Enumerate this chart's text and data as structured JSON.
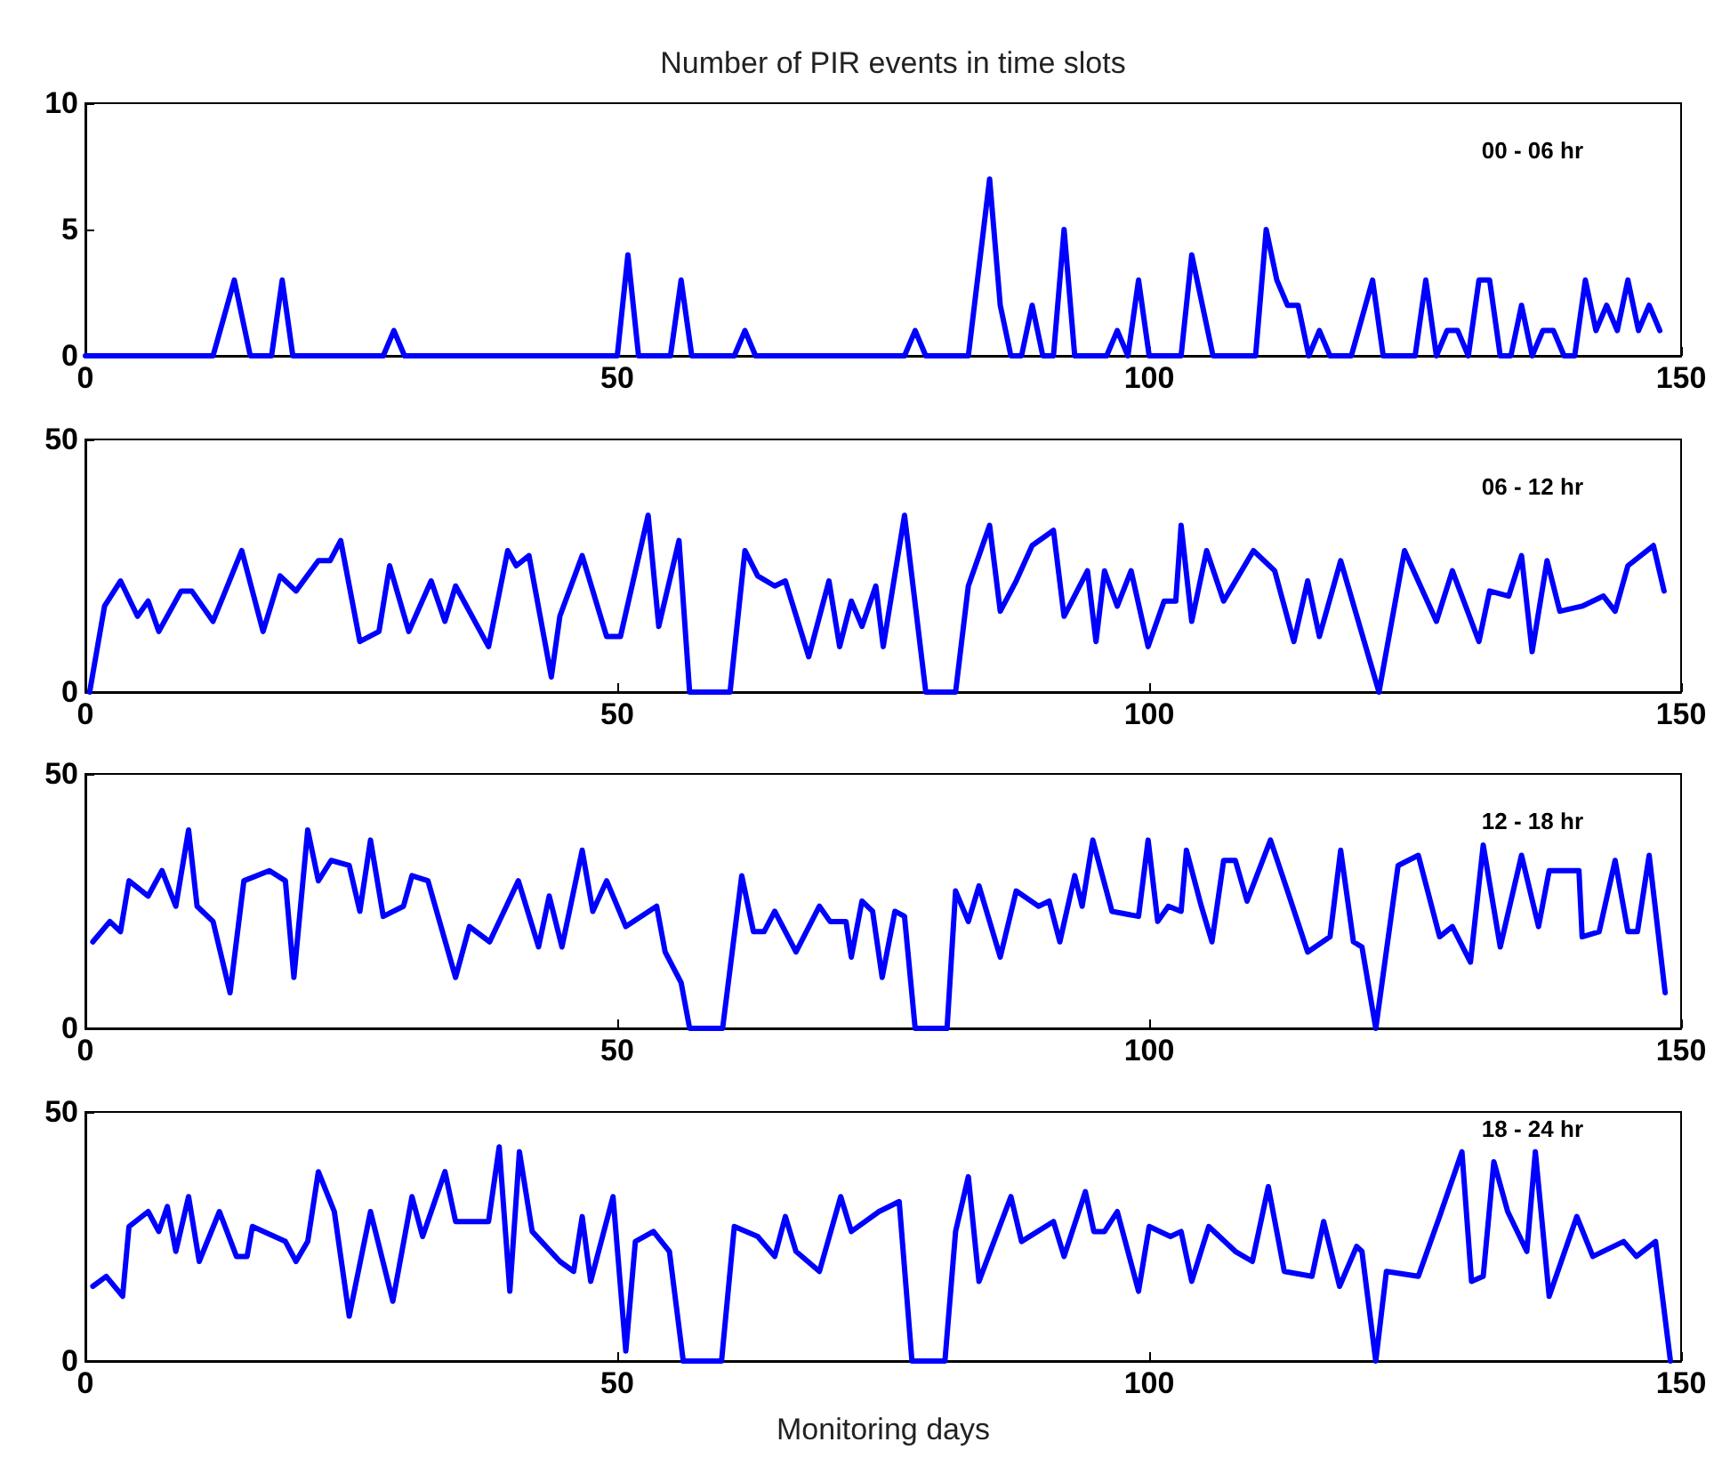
{
  "chart_data": [
    {
      "type": "line",
      "title": "Number of PIR events in time slots",
      "annotations": [
        "00 - 06 hr"
      ],
      "xlim": [
        0,
        150
      ],
      "xticks": [
        0,
        50,
        100,
        150
      ],
      "ylim": [
        0,
        10
      ],
      "yticks": [
        0,
        5,
        10
      ],
      "series": [
        {
          "color": "#0000ff",
          "x": [
            0,
            12,
            14,
            15.5,
            17.5,
            18.5,
            19.5,
            28,
            29,
            30,
            50,
            51,
            52,
            55,
            56,
            57,
            61,
            62,
            63,
            77,
            78,
            79,
            83,
            85,
            86,
            87,
            88,
            89,
            90,
            91,
            92,
            93,
            96,
            97,
            98,
            99,
            100,
            103,
            104,
            105,
            106,
            110,
            111,
            112,
            113,
            114,
            115,
            116,
            117,
            119,
            121,
            122,
            125,
            126,
            127,
            128,
            129,
            130,
            131,
            132,
            133,
            134,
            135,
            136,
            137,
            138,
            139,
            140,
            141,
            142,
            143,
            144,
            145,
            146,
            147,
            148
          ],
          "values": [
            0,
            0,
            3,
            0,
            0,
            3,
            0,
            0,
            1,
            0,
            0,
            4,
            0,
            0,
            3,
            0,
            0,
            1,
            0,
            0,
            1,
            0,
            0,
            7,
            2,
            0,
            0,
            2,
            0,
            0,
            5,
            0,
            0,
            1,
            0,
            3,
            0,
            0,
            4,
            2,
            0,
            0,
            5,
            3,
            2,
            2,
            0,
            1,
            0,
            0,
            3,
            0,
            0,
            3,
            0,
            1,
            1,
            0,
            3,
            3,
            0,
            0,
            2,
            0,
            1,
            1,
            0,
            0,
            3,
            1,
            2,
            1,
            3,
            1,
            2,
            1
          ]
        }
      ]
    },
    {
      "type": "line",
      "annotations": [
        "06 - 12 hr"
      ],
      "xlim": [
        0,
        150
      ],
      "xticks": [
        0,
        50,
        100,
        150
      ],
      "ylim": [
        0,
        50
      ],
      "yticks": [
        0,
        50
      ],
      "series": [
        {
          "color": "#0000ff",
          "x": [
            0.4,
            1.8,
            3.3,
            4.9,
            5.9,
            6.9,
            9,
            10,
            12,
            14.7,
            16.7,
            18.3,
            19.8,
            21.9,
            23,
            24,
            25.8,
            27.6,
            28.6,
            30.4,
            32.5,
            33.8,
            34.8,
            37.9,
            39.7,
            40.5,
            41.7,
            43.8,
            44.6,
            46.7,
            49,
            50.3,
            52.9,
            53.9,
            55.8,
            56.8,
            60.6,
            62,
            63.2,
            64.8,
            65.8,
            68,
            69.9,
            70.9,
            72,
            73,
            74.3,
            75,
            77,
            79,
            81.8,
            83,
            85,
            86,
            87.5,
            89,
            91,
            92,
            94.2,
            95,
            95.8,
            97,
            98.3,
            99.9,
            101.4,
            102.5,
            103,
            104,
            105.4,
            107,
            109.8,
            111.8,
            113.6,
            114.9,
            116,
            118,
            121.6,
            124,
            127,
            128.5,
            131,
            132,
            133.8,
            135,
            136,
            137.4,
            138.6,
            140.7,
            142.7,
            143.8,
            145,
            147.4,
            148.4
          ],
          "values": [
            0,
            17,
            22,
            15,
            18,
            12,
            20,
            20,
            14,
            28,
            12,
            23,
            20,
            26,
            26,
            30,
            10,
            12,
            25,
            12,
            22,
            14,
            21,
            9,
            28,
            25,
            27,
            3,
            15,
            27,
            11,
            11,
            35,
            13,
            30,
            0,
            0,
            28,
            23,
            21,
            22,
            7,
            22,
            9,
            18,
            13,
            21,
            9,
            35,
            0,
            0,
            21,
            33,
            16,
            22,
            29,
            32,
            15,
            24,
            10,
            24,
            17,
            24,
            9,
            18,
            18,
            33,
            14,
            28,
            18,
            28,
            24,
            10,
            22,
            11,
            26,
            0,
            28,
            14,
            24,
            10,
            20,
            19,
            27,
            8,
            26,
            16,
            17,
            19,
            16,
            25,
            29,
            20
          ]
        }
      ]
    },
    {
      "type": "line",
      "annotations": [
        "12 - 18 hr"
      ],
      "xlim": [
        0,
        150
      ],
      "xticks": [
        0,
        50,
        100,
        150
      ],
      "ylim": [
        0,
        50
      ],
      "yticks": [
        0,
        50
      ],
      "series": [
        {
          "color": "#0000ff",
          "x": [
            0.7,
            2.3,
            3.3,
            4.1,
            5.9,
            7.2,
            8.5,
            9.7,
            10.5,
            12,
            13.6,
            14.9,
            17.3,
            18.8,
            19.6,
            20.9,
            21.9,
            23.1,
            24.8,
            25.8,
            26.8,
            28,
            29.9,
            30.7,
            32.2,
            34.8,
            36.1,
            38,
            40.7,
            42.6,
            43.6,
            44.8,
            46.7,
            47.7,
            49,
            50.8,
            53.7,
            54.5,
            56,
            56.8,
            59.9,
            61.7,
            62.8,
            63.8,
            64.8,
            66.8,
            69,
            70,
            71.5,
            72,
            73,
            74,
            74.9,
            76.1,
            77,
            78,
            81,
            81.8,
            83,
            84,
            86,
            87.5,
            89.6,
            90.6,
            91.6,
            93,
            93.7,
            94.7,
            96.5,
            99,
            99.9,
            100.8,
            101.8,
            103,
            103.5,
            104.9,
            105.9,
            107,
            108.1,
            109.2,
            111.4,
            113,
            114.9,
            117,
            118,
            119.2,
            120,
            121.3,
            123.4,
            125.3,
            127.3,
            128.5,
            130.2,
            131.4,
            133,
            135,
            136.6,
            137.6,
            140.4,
            140.7,
            142.3,
            143.8,
            145,
            145.9,
            147,
            148.5
          ],
          "values": [
            17,
            21,
            19,
            29,
            26,
            31,
            24,
            39,
            24,
            21,
            7,
            29,
            31,
            29,
            10,
            39,
            29,
            33,
            32,
            23,
            37,
            22,
            24,
            30,
            29,
            10,
            20,
            17,
            29,
            16,
            26,
            16,
            35,
            23,
            29,
            20,
            24,
            15,
            9,
            0,
            0,
            30,
            19,
            19,
            23,
            15,
            24,
            21,
            21,
            14,
            25,
            23,
            10,
            23,
            22,
            0,
            0,
            27,
            21,
            28,
            14,
            27,
            24,
            25,
            17,
            30,
            24,
            37,
            23,
            22,
            37,
            21,
            24,
            23,
            35,
            24,
            17,
            33,
            33,
            25,
            37,
            27,
            15,
            18,
            35,
            17,
            16,
            0,
            32,
            34,
            18,
            20,
            13,
            36,
            16,
            34,
            20,
            31,
            31,
            18,
            19,
            33,
            19,
            19,
            34,
            7
          ]
        }
      ]
    },
    {
      "type": "line",
      "xlabel": "Monitoring days",
      "annotations": [
        "18 - 24 hr"
      ],
      "xlim": [
        0,
        150
      ],
      "xticks": [
        0,
        50,
        100,
        150
      ],
      "ylim": [
        0,
        50
      ],
      "yticks": [
        0,
        50
      ],
      "series": [
        {
          "color": "#0000ff",
          "x": [
            0.7,
            1.96,
            3.5,
            4.1,
            5.9,
            6.9,
            7.7,
            8.5,
            9.7,
            10.7,
            12.6,
            14.2,
            15.2,
            15.7,
            18.8,
            19.8,
            20.9,
            21.9,
            23.4,
            24.8,
            26.8,
            28.9,
            30.7,
            31.7,
            33.8,
            34.8,
            37.9,
            38.9,
            39.9,
            40.8,
            42,
            44.6,
            45.9,
            46.7,
            47.5,
            49.6,
            50.8,
            51.7,
            53.4,
            54.9,
            56.2,
            59.8,
            61,
            63.2,
            64.8,
            65.8,
            66.8,
            69,
            71,
            72,
            74.6,
            76.5,
            77.7,
            80.8,
            81.8,
            83,
            84,
            87,
            88,
            91,
            92,
            94,
            94.8,
            95.8,
            97,
            99,
            100,
            102,
            103,
            104,
            105.6,
            108.1,
            109.7,
            111.2,
            112.7,
            115.3,
            116.4,
            117.9,
            119.5,
            120,
            121.3,
            122.3,
            125.3,
            127.3,
            129.4,
            130.3,
            131.4,
            132.4,
            133.7,
            135.5,
            136.3,
            137.6,
            140.2,
            141.7,
            144.6,
            145.8,
            147.6,
            149
          ],
          "values": [
            15,
            17,
            13,
            27,
            30,
            26,
            31,
            22,
            33,
            20,
            30,
            21,
            21,
            27,
            24,
            20,
            24,
            38,
            30,
            9,
            30,
            12,
            33,
            25,
            38,
            28,
            28,
            43,
            14,
            42,
            26,
            20,
            18,
            29,
            16,
            33,
            2,
            24,
            26,
            22,
            0,
            0,
            27,
            25,
            21,
            29,
            22,
            18,
            33,
            26,
            30,
            32,
            0,
            0,
            26,
            37,
            16,
            33,
            24,
            28,
            21,
            34,
            26,
            26,
            30,
            14,
            27,
            25,
            26,
            16,
            27,
            22,
            20,
            35,
            18,
            17,
            28,
            15,
            23,
            22,
            0,
            18,
            17,
            29,
            42,
            16,
            17,
            40,
            30,
            22,
            42,
            13,
            29,
            21,
            24,
            21,
            24,
            0
          ]
        }
      ]
    }
  ]
}
